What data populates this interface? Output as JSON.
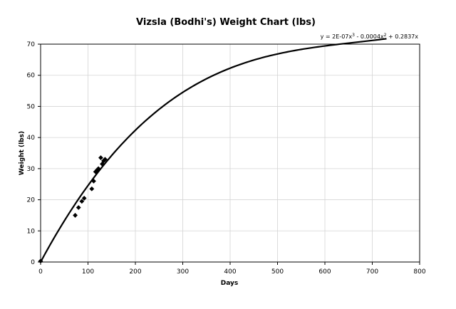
{
  "chart_data": {
    "type": "scatter",
    "title": "Vizsla (Bodhi's) Weight Chart (lbs)",
    "xlabel": "Days",
    "ylabel": "Weight (lbs)",
    "xlim": [
      0,
      800
    ],
    "ylim": [
      0,
      70
    ],
    "x_ticks": [
      0,
      100,
      200,
      300,
      400,
      500,
      600,
      700,
      800
    ],
    "y_ticks": [
      0,
      10,
      20,
      30,
      40,
      50,
      60,
      70
    ],
    "grid": true,
    "legend": "none",
    "series": [
      {
        "kind": "scatter",
        "marker": "diamond",
        "points": [
          [
            0,
            0.3
          ],
          [
            73,
            15
          ],
          [
            80,
            17.5
          ],
          [
            87,
            19.5
          ],
          [
            92,
            20.5
          ],
          [
            108,
            23.5
          ],
          [
            112,
            26
          ],
          [
            116,
            29
          ],
          [
            119,
            29.5
          ],
          [
            122,
            30
          ],
          [
            127,
            33.5
          ],
          [
            130,
            31.5
          ],
          [
            133,
            32.5
          ],
          [
            136,
            33
          ]
        ]
      },
      {
        "kind": "trendline",
        "model": "polynomial",
        "order": 3,
        "coefficients": [
          2e-07,
          -0.0004,
          0.2837,
          0
        ],
        "x_range": [
          0,
          730
        ]
      }
    ],
    "annotations": [
      {
        "text": "y = 2E-07x",
        "sup": "3",
        "text2": " - 0.0004x",
        "sup2": "2",
        "text3": " + 0.2837x",
        "position": "top-right"
      }
    ]
  },
  "colors": {
    "plot_border": "#000000",
    "grid": "#d4d4d4",
    "series": "#000000"
  }
}
